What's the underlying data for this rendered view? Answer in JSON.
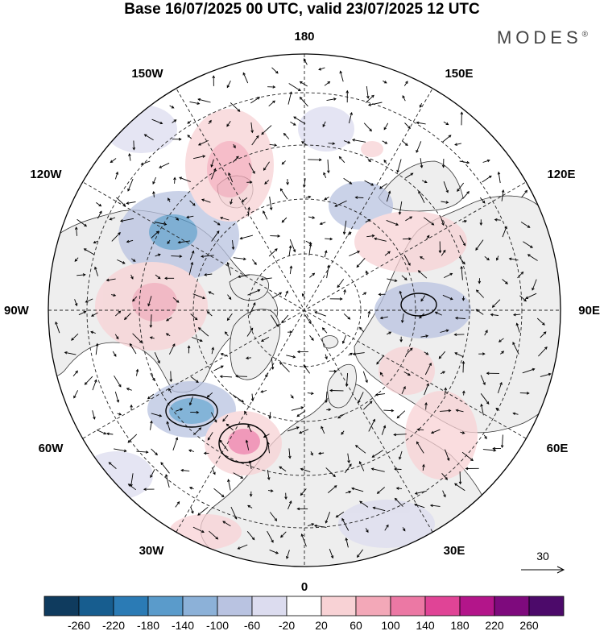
{
  "title": "Base 16/07/2025 00 UTC, valid 23/07/2025 12 UTC",
  "brand": "MODES",
  "brand_mark": "®",
  "longitude_labels": {
    "top": "180",
    "bottom": "0",
    "left": "90W",
    "right": "90E",
    "upper_left_1": "150W",
    "upper_left_2": "120W",
    "upper_right_1": "150E",
    "upper_right_2": "120E",
    "lower_left_1": "60W",
    "lower_left_2": "30W",
    "lower_right_1": "60E",
    "lower_right_2": "30E"
  },
  "reference_vector_label": "30",
  "colorbar": {
    "ticks": [
      "-260",
      "-220",
      "-180",
      "-140",
      "-100",
      "-60",
      "-20",
      "20",
      "60",
      "100",
      "140",
      "180",
      "220",
      "260"
    ],
    "colors": [
      "#0f3b5e",
      "#175d8f",
      "#2b7bb5",
      "#5a9bcb",
      "#8cb1d8",
      "#b9c3e1",
      "#dcdcef",
      "#ffffff",
      "#f8d2d5",
      "#f3a8b8",
      "#ec78a4",
      "#e04496",
      "#b3158a",
      "#7e0a7d",
      "#4c0a6a"
    ]
  },
  "palette": {
    "land": "#eeeeee",
    "ocean": "#ffffff",
    "neg_light": "#dcdcef",
    "neg_mid": "#b9c3e1",
    "neg_strong": "#8cb1d8",
    "neg_deep": "#5a9bcb",
    "pos_light": "#f8d2d5",
    "pos_mid": "#f3a8b8",
    "pos_strong": "#ec78a4"
  }
}
